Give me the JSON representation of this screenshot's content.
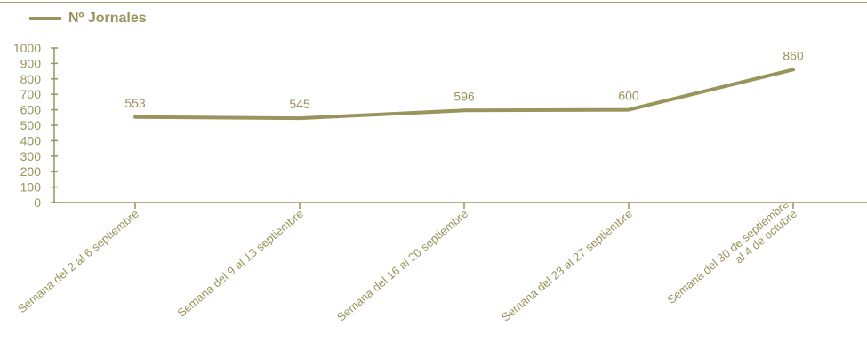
{
  "colors": {
    "series": "#99935c",
    "text": "#99935c",
    "axis": "#99935c"
  },
  "legend": {
    "label": "Nº Jornales"
  },
  "chart_data": {
    "type": "line",
    "categories": [
      [
        "Semana del 2 al 6 septiembre"
      ],
      [
        "Semana del 9 al 13 septiembre"
      ],
      [
        "Semana del 16 al 20 septiembre"
      ],
      [
        "Semana del 23 al 27 septiembre"
      ],
      [
        "Semana del 30 de septiembre",
        "al 4 de octubre"
      ]
    ],
    "series": [
      {
        "name": "Nº Jornales",
        "values": [
          553,
          545,
          596,
          600,
          860
        ]
      }
    ],
    "ylim": [
      0,
      1000
    ],
    "yticks": [
      0,
      100,
      200,
      300,
      400,
      500,
      600,
      700,
      800,
      900,
      1000
    ],
    "grid": false,
    "legend_position": "top-left",
    "data_labels": true
  }
}
